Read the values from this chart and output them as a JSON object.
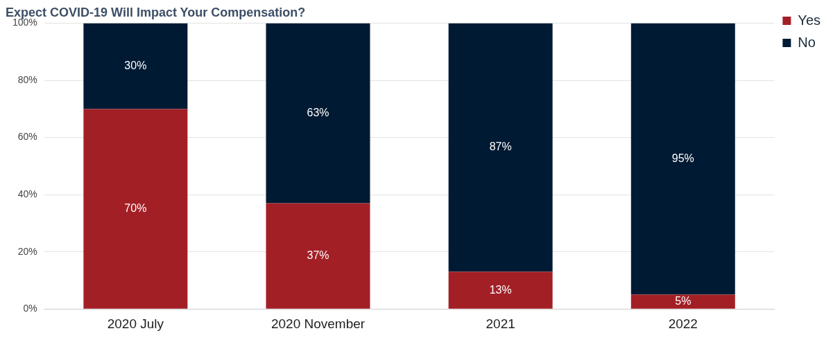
{
  "chart_data": {
    "type": "bar",
    "title": "Expect COVID-19 Will Impact Your Compensation?",
    "categories": [
      "2020 July",
      "2020 November",
      "2021",
      "2022"
    ],
    "series": [
      {
        "name": "Yes",
        "color": "#a31f26",
        "values": [
          70,
          37,
          13,
          5
        ],
        "value_labels": [
          "70%",
          "37%",
          "13%",
          "5%"
        ]
      },
      {
        "name": "No",
        "color": "#001a33",
        "values": [
          30,
          63,
          87,
          95
        ],
        "value_labels": [
          "30%",
          "63%",
          "87%",
          "95%"
        ]
      }
    ],
    "stacked": true,
    "ylim": [
      0,
      100
    ],
    "yticks": [
      {
        "value": 0,
        "label": "0%"
      },
      {
        "value": 20,
        "label": "20%"
      },
      {
        "value": 40,
        "label": "40%"
      },
      {
        "value": 60,
        "label": "60%"
      },
      {
        "value": 80,
        "label": "80%"
      },
      {
        "value": 100,
        "label": "100%"
      }
    ],
    "grid": "y",
    "legend": "top right"
  }
}
